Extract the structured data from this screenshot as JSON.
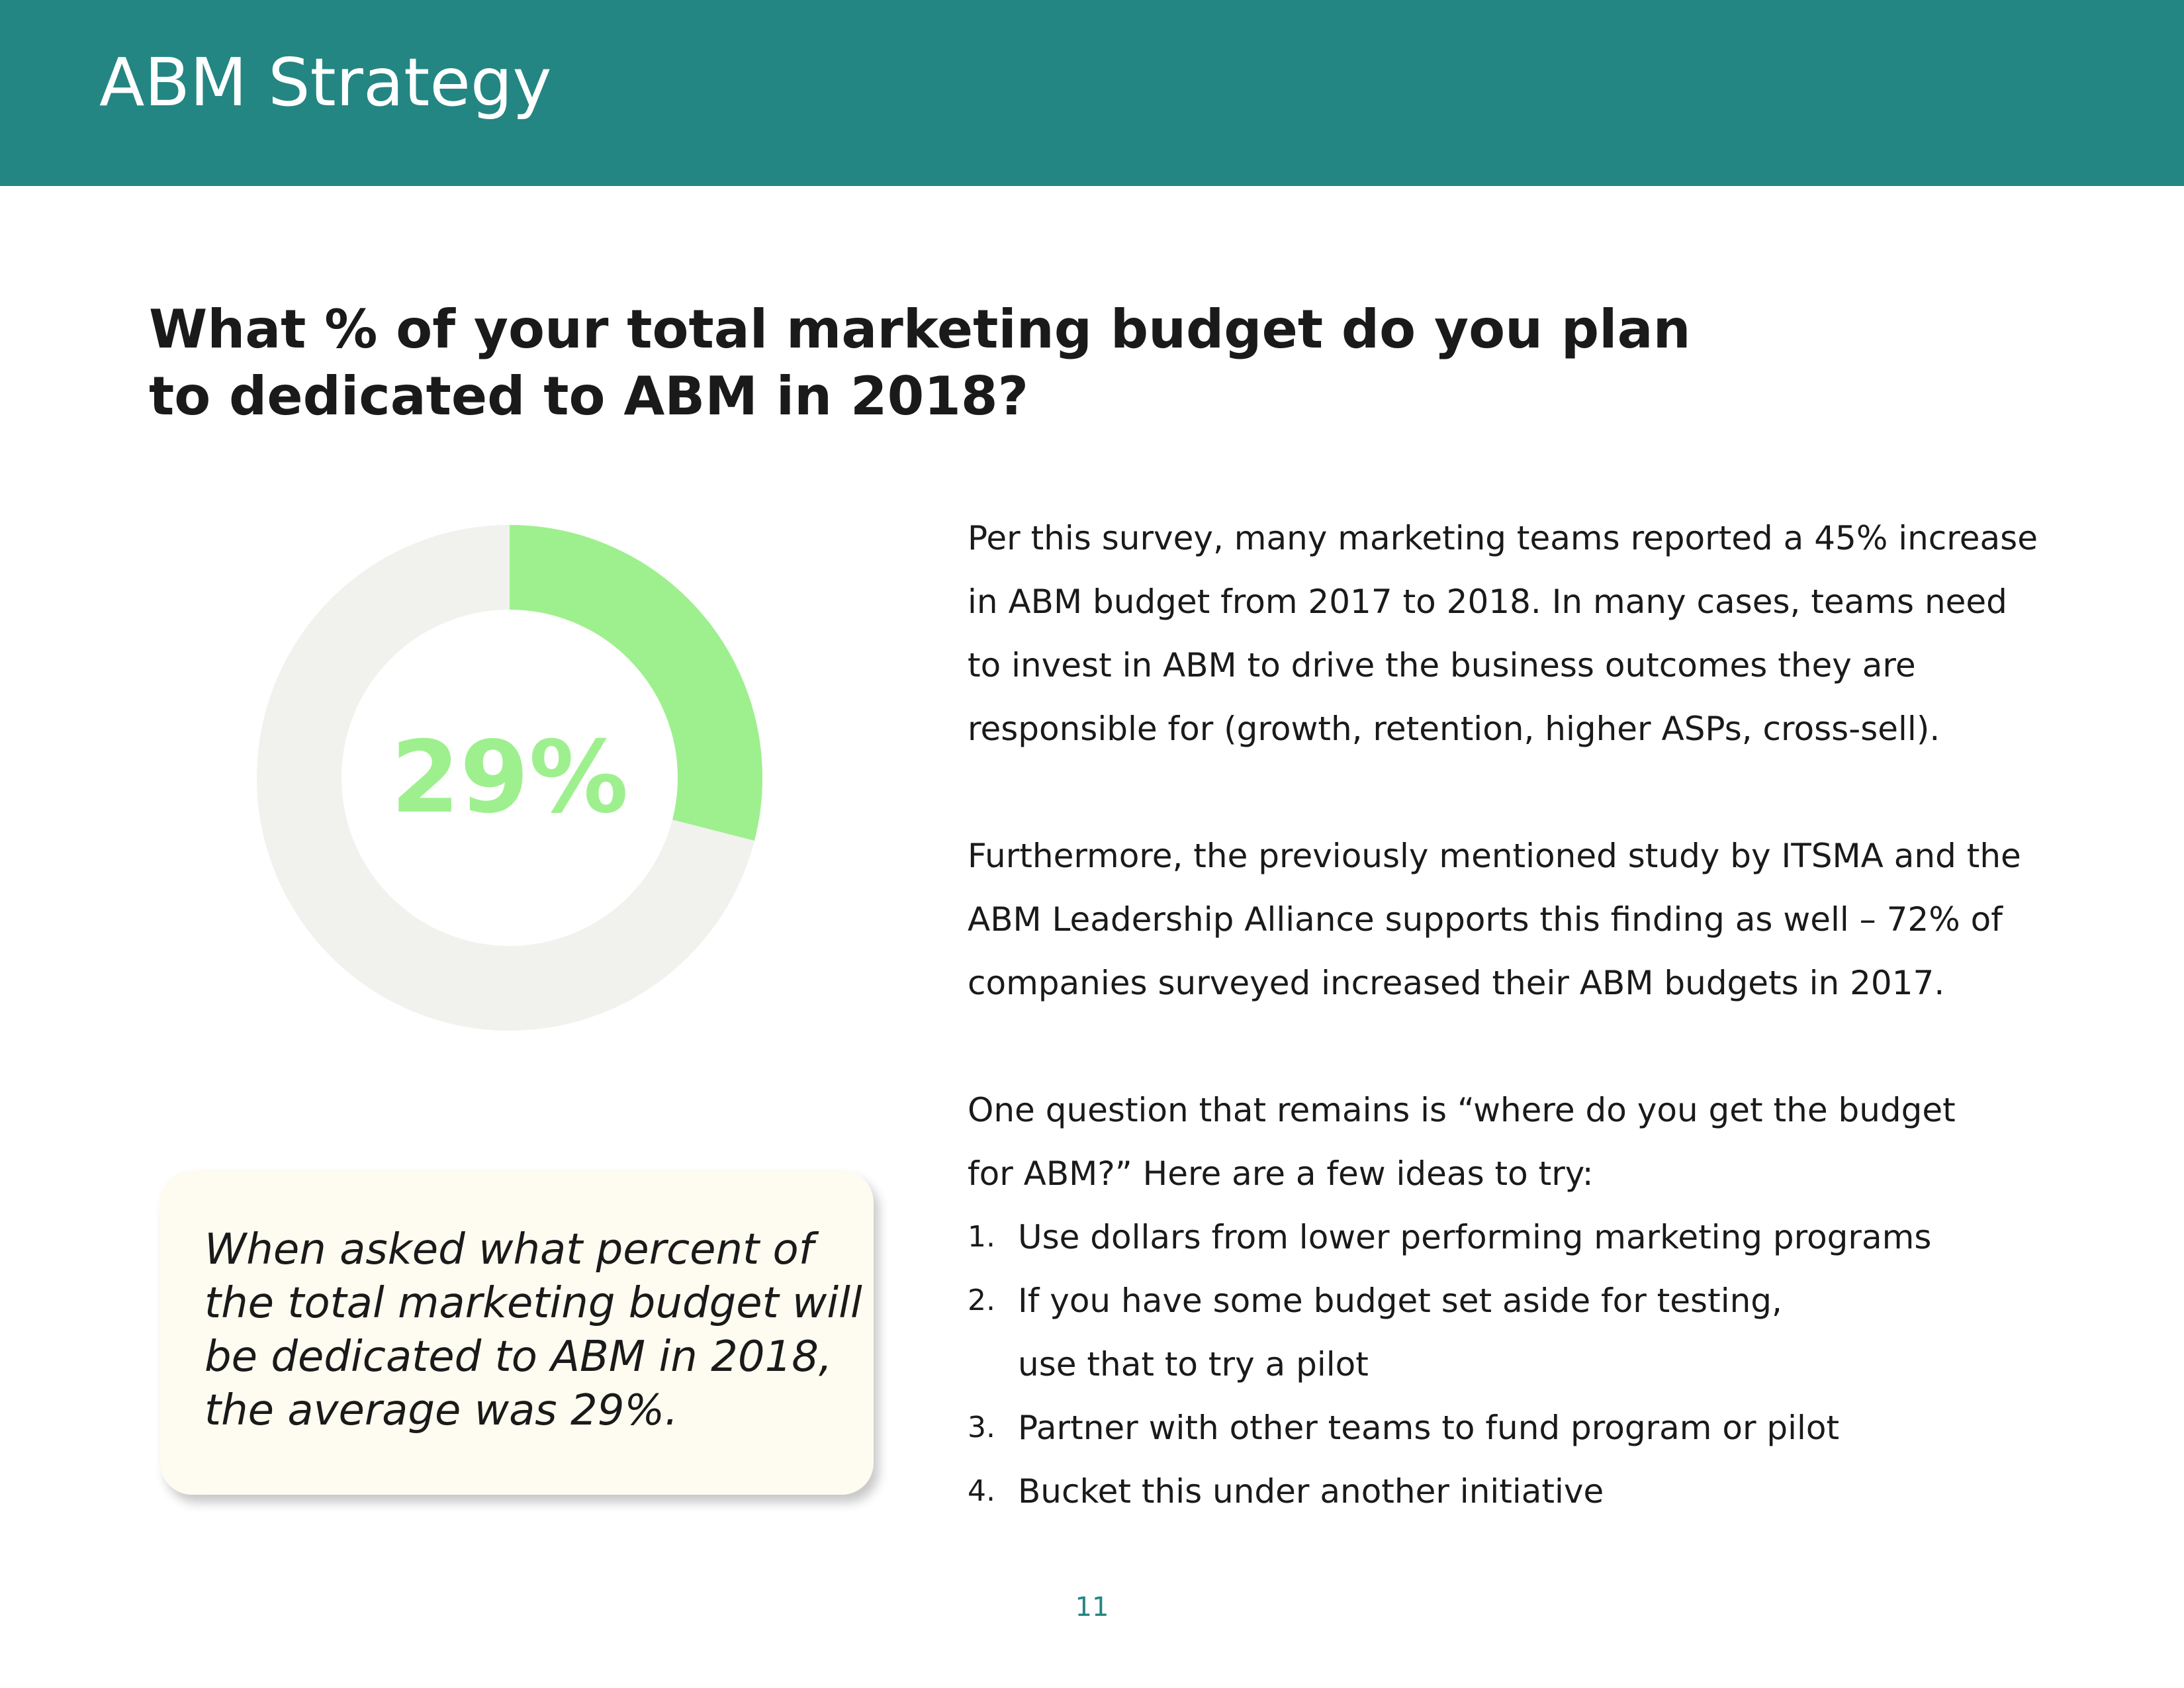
{
  "header": {
    "title": "ABM Strategy",
    "background_color": "#238682"
  },
  "question": {
    "line1": "What % of your total marketing budget do you plan",
    "line2": "to dedicated to ABM in 2018?"
  },
  "donut": {
    "value_percent": 29,
    "label": "29%",
    "filled_color": "#9ef08e",
    "remaining_color": "#f1f2ee"
  },
  "callout": {
    "line1": "When asked what percent of",
    "line2": "the total marketing budget will",
    "line3": "be dedicated to ABM in 2018,",
    "line4": "the average was 29%."
  },
  "body": {
    "para1": [
      "Per this survey, many marketing teams reported a 45% increase",
      "in ABM budget from 2017 to 2018. In many cases, teams need",
      "to invest in ABM to drive the business outcomes they are",
      "responsible for (growth, retention, higher ASPs, cross-sell)."
    ],
    "para2": [
      "Furthermore, the previously mentioned study by ITSMA and the",
      "ABM Leadership Alliance supports this finding as well – 72% of",
      "companies surveyed increased their ABM budgets in 2017."
    ],
    "para3": [
      "One question that remains is “where do you get the budget",
      "for ABM?” Here are a few ideas to try:"
    ],
    "list": [
      {
        "num": "1.",
        "text": "Use dollars from lower performing marketing programs"
      },
      {
        "num": "2.",
        "text": "If you have some budget set aside for testing,",
        "cont": "use that to try a pilot"
      },
      {
        "num": "3.",
        "text": "Partner with other teams to fund program or pilot"
      },
      {
        "num": "4.",
        "text": "Bucket this under another initiative"
      }
    ]
  },
  "page_number": "11"
}
